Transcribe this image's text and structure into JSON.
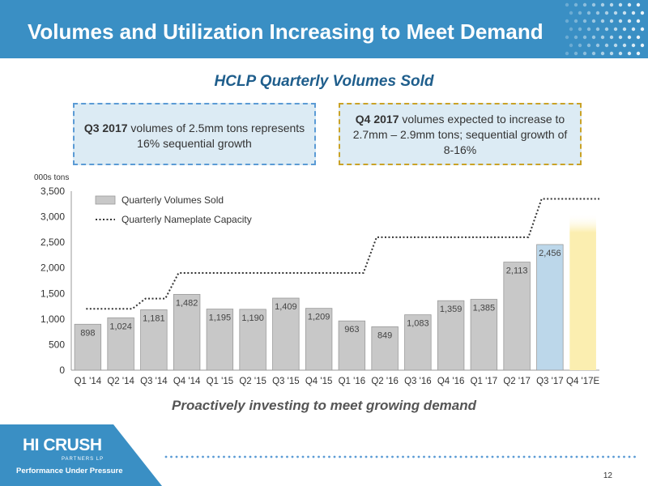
{
  "header": {
    "title": "Volumes and Utilization Increasing to Meet Demand"
  },
  "subtitle": "HCLP Quarterly Volumes Sold",
  "callouts": {
    "left": {
      "bold": "Q3 2017",
      "text": " volumes of 2.5mm tons represents 16% sequential growth"
    },
    "right": {
      "bold": "Q4 2017",
      "text": " volumes expected to increase to 2.7mm – 2.9mm tons; sequential growth of 8-16%"
    }
  },
  "units_label": "000s tons",
  "chart_data": {
    "type": "bar",
    "title": "HCLP Quarterly Volumes Sold",
    "categories": [
      "Q1 '14",
      "Q2 '14",
      "Q3 '14",
      "Q4 '14",
      "Q1 '15",
      "Q2 '15",
      "Q3 '15",
      "Q4 '15",
      "Q1 '16",
      "Q2 '16",
      "Q3 '16",
      "Q4 '16",
      "Q1 '17",
      "Q2 '17",
      "Q3 '17",
      "Q4 '17E"
    ],
    "series": [
      {
        "name": "Quarterly Volumes Sold",
        "type": "bar",
        "color": "#c8c8c8",
        "values": [
          898,
          1024,
          1181,
          1482,
          1195,
          1190,
          1409,
          1209,
          963,
          849,
          1083,
          1359,
          1385,
          2113,
          2456,
          null
        ],
        "labels": [
          "898",
          "1,024",
          "1,181",
          "1,482",
          "1,195",
          "1,190",
          "1,409",
          "1,209",
          "963",
          "849",
          "1,083",
          "1,359",
          "1,385",
          "2,113",
          "2,456",
          ""
        ]
      },
      {
        "name": "Quarterly Nameplate Capacity",
        "type": "line",
        "style": "dotted",
        "color": "#333333",
        "values": [
          1200,
          1200,
          1400,
          1900,
          1900,
          1900,
          1900,
          1900,
          1900,
          2600,
          2600,
          2600,
          2600,
          2600,
          3350,
          3350
        ]
      }
    ],
    "highlights": [
      {
        "category": "Q3 '17",
        "color": "#bcd7ea"
      },
      {
        "category": "Q4 '17E",
        "color": "#fbeeb0",
        "range": [
          2700,
          2900
        ]
      }
    ],
    "yticks": [
      "0",
      "500",
      "1,000",
      "1,500",
      "2,000",
      "2,500",
      "3,000",
      "3,500"
    ],
    "ylim": [
      0,
      3500
    ],
    "ylabel": "000s tons",
    "xlabel": "",
    "legend": "top-left",
    "grid": false
  },
  "tagline": "Proactively investing to meet growing demand",
  "logo": {
    "main": "HI CRUSH",
    "sub": "PARTNERS LP",
    "tag": "Performance Under Pressure"
  },
  "page_number": "12",
  "colors": {
    "header": "#3a8fc4",
    "footer": "#3a8fc4",
    "subtitle": "#1f5e8c"
  }
}
